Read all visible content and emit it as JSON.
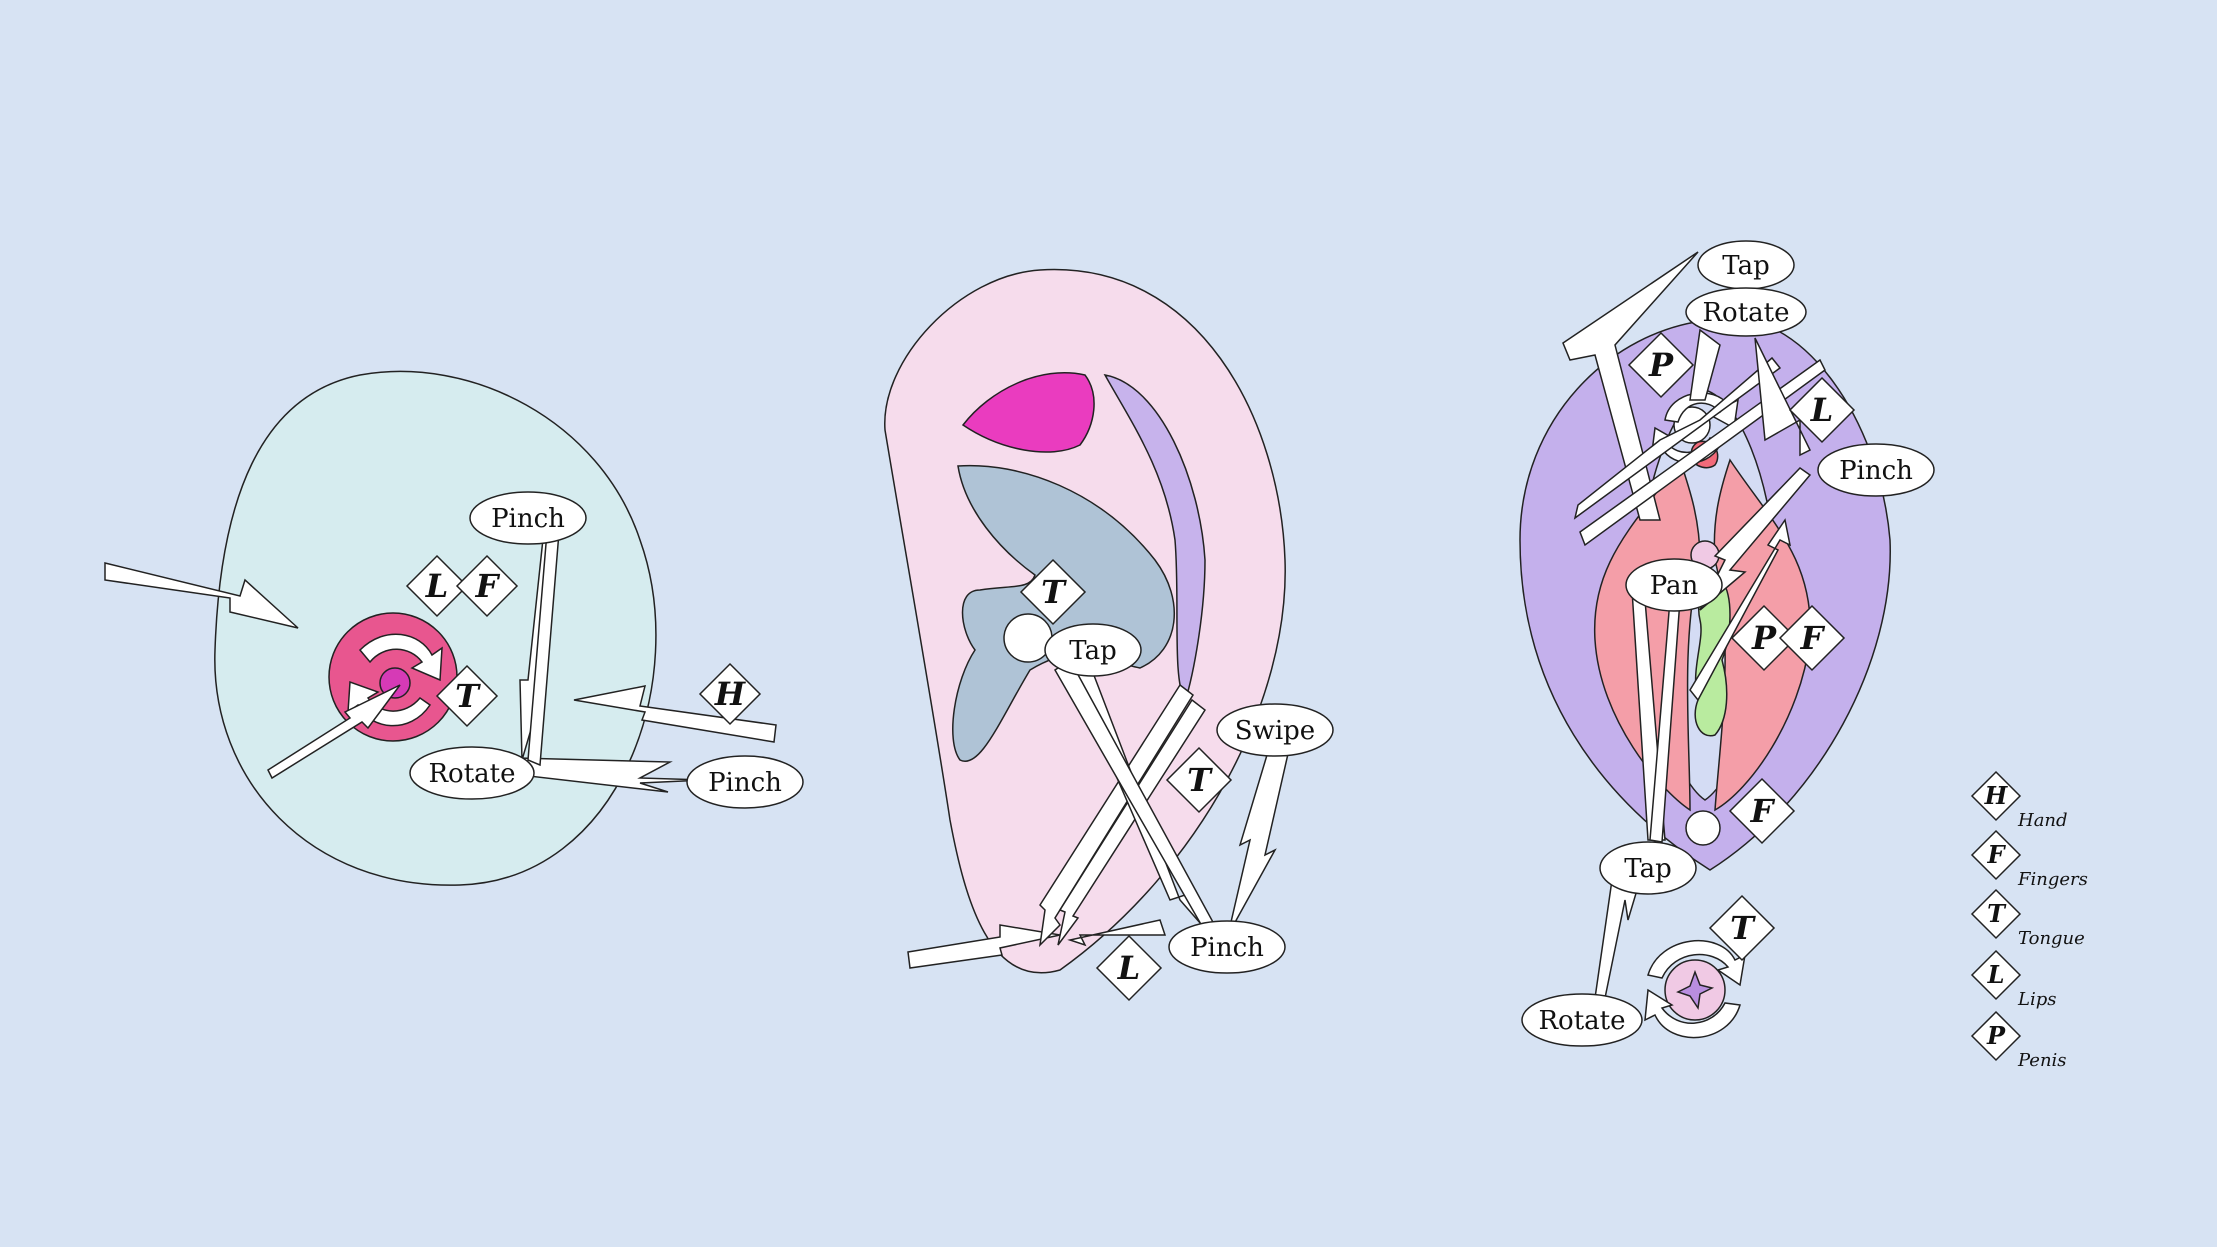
{
  "colors": {
    "background": "#d7e3f3",
    "breast_area": "#d6ecef",
    "areola": "#e8568f",
    "nipple": "#d63ab6",
    "ear": "#f6dcec",
    "ear_pink": "#ea3cbf",
    "ear_canal": "#afc3d6",
    "ear_helix": "#c7b3ec",
    "vulva_outer": "#c4b0ec",
    "labia": "#f49ea8",
    "clitoris": "#f26a7a",
    "green": "#b9eb9f",
    "anus": "#f0c9e4",
    "anus_inner": "#b98ee0"
  },
  "diagrams": {
    "breast": {
      "labels": [
        "Pinch",
        "Rotate",
        "Pinch"
      ],
      "badges": [
        "L",
        "F",
        "T",
        "H"
      ]
    },
    "ear": {
      "labels": [
        "Tap",
        "Swipe",
        "Pinch"
      ],
      "badges": [
        "T",
        "T",
        "L"
      ]
    },
    "vulva": {
      "labels": [
        "Tap",
        "Rotate",
        "Pinch",
        "Pan",
        "Tap",
        "Rotate"
      ],
      "badges": [
        "P",
        "L",
        "P",
        "F",
        "F",
        "T"
      ]
    }
  },
  "legend": [
    {
      "letter": "H",
      "name": "Hand"
    },
    {
      "letter": "F",
      "name": "Fingers"
    },
    {
      "letter": "T",
      "name": "Tongue"
    },
    {
      "letter": "L",
      "name": "Lips"
    },
    {
      "letter": "P",
      "name": "Penis"
    }
  ]
}
